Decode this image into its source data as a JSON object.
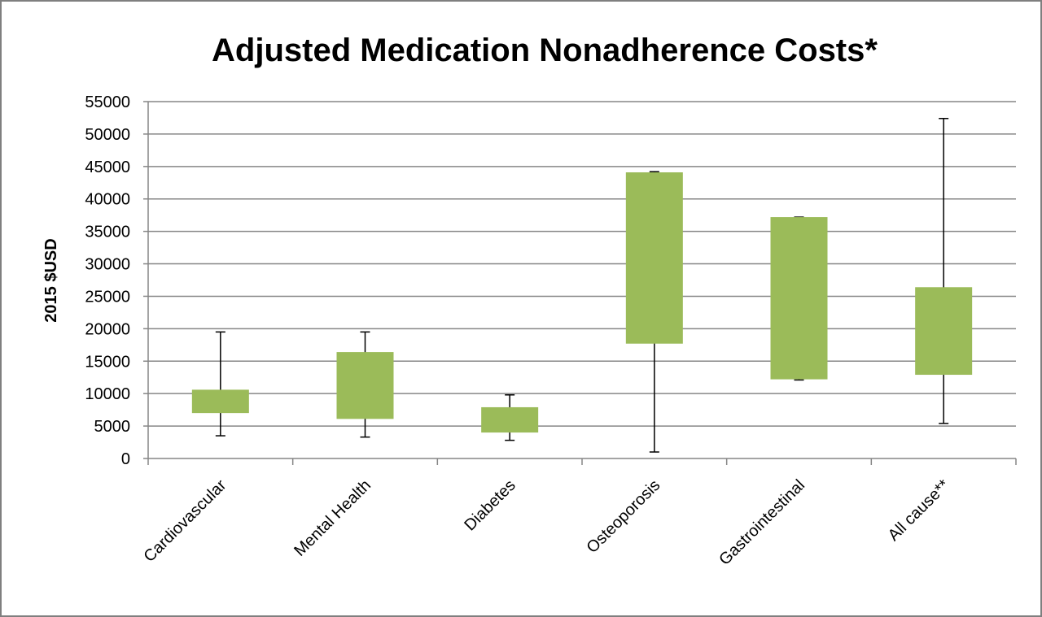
{
  "chart_data": {
    "type": "box",
    "title": "Adjusted Medication Nonadherence Costs*",
    "xlabel": "",
    "ylabel": "2015 $USD",
    "ylim": [
      0,
      55000
    ],
    "yticks": [
      0,
      5000,
      10000,
      15000,
      20000,
      25000,
      30000,
      35000,
      40000,
      45000,
      50000,
      55000
    ],
    "grid": "horizontal",
    "legend": "none",
    "categories": [
      "Cardiovascular",
      "Mental Health",
      "Diabetes",
      "Osteoporosis",
      "Gastrointestinal",
      "All cause**"
    ],
    "boxes": [
      {
        "min": 3500,
        "q1": 7000,
        "q3": 10600,
        "max": 19500
      },
      {
        "min": 3300,
        "q1": 6100,
        "q3": 16400,
        "max": 19500
      },
      {
        "min": 2800,
        "q1": 4000,
        "q3": 7900,
        "max": 9800
      },
      {
        "min": 1000,
        "q1": 17700,
        "q3": 44100,
        "max": 44200
      },
      {
        "min": 12100,
        "q1": 12200,
        "q3": 37200,
        "max": 37200
      },
      {
        "min": 5400,
        "q1": 12900,
        "q3": 26400,
        "max": 52400
      }
    ],
    "colors": {
      "box_fill": "#9bbb59",
      "whisker": "#000000",
      "grid": "#868686",
      "axis": "#868686"
    }
  }
}
